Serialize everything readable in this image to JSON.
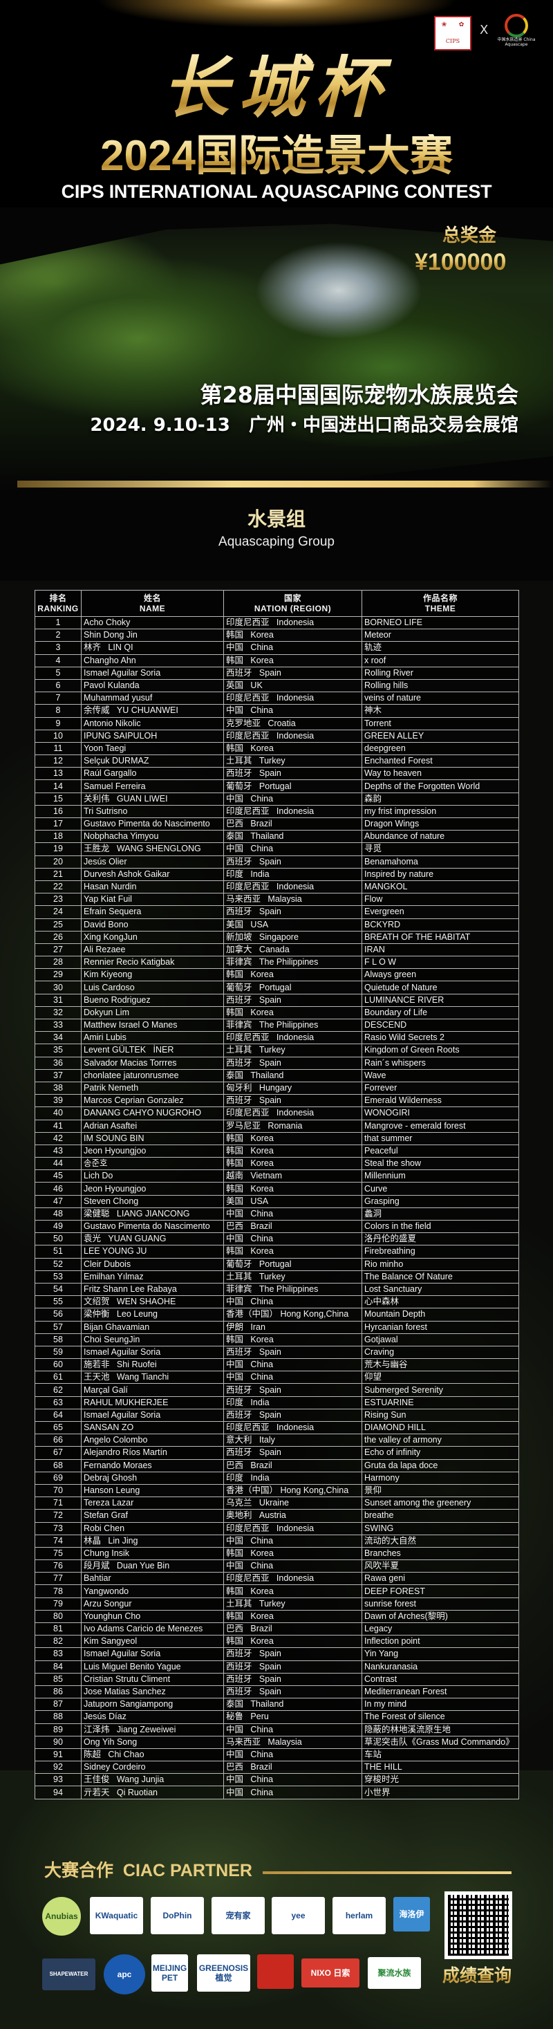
{
  "header": {
    "logo_left": "CIPS",
    "logo_separator": "X",
    "logo_right": "中国水族造景 China Aquascape",
    "calligraphy": "长城杯",
    "title_cn": "2024国际造景大赛",
    "title_en": "CIPS INTERNATIONAL AQUASCAPING CONTEST",
    "prize_label": "总奖金",
    "prize_value": "¥100000",
    "expo": "第28届中国国际宠物水族展览会",
    "date_venue": "2024. 9.10-13   广州・中国进出口商品交易会展馆"
  },
  "group": {
    "title_cn": "水景组",
    "title_en": "Aquascaping Group"
  },
  "table": {
    "headers": [
      {
        "cn": "排名",
        "en": "RANKING"
      },
      {
        "cn": "姓名",
        "en": "NAME"
      },
      {
        "cn": "国家",
        "en": "NATION (REGION)"
      },
      {
        "cn": "作品名称",
        "en": "THEME"
      }
    ],
    "rows": [
      [
        "1",
        "Acho Choky",
        "印度尼西亚   Indonesia",
        "BORNEO LIFE"
      ],
      [
        "2",
        "Shin Dong Jin",
        "韩国   Korea",
        "Meteor"
      ],
      [
        "3",
        "林齐   LIN QI",
        "中国   China",
        "轨迹"
      ],
      [
        "4",
        "Changho Ahn",
        "韩国   Korea",
        "x roof"
      ],
      [
        "5",
        "Ismael Aguilar Soria",
        "西班牙   Spain",
        "Rolling River"
      ],
      [
        "6",
        "Pavol Kulanda",
        "英国   UK",
        "Rolling hills"
      ],
      [
        "7",
        "Muhammad yusuf",
        "印度尼西亚   Indonesia",
        "veins of nature"
      ],
      [
        "8",
        "余传威   YU CHUANWEI",
        "中国   China",
        "神木"
      ],
      [
        "9",
        "Antonio Nikolic",
        "克罗地亚   Croatia",
        "Torrent"
      ],
      [
        "10",
        "IPUNG SAIPULOH",
        "印度尼西亚   Indonesia",
        "GREEN ALLEY"
      ],
      [
        "11",
        "Yoon Taegi",
        "韩国   Korea",
        "deepgreen"
      ],
      [
        "12",
        "Selçuk DURMAZ",
        "土耳其   Turkey",
        "Enchanted Forest"
      ],
      [
        "13",
        "Raúl Gargallo",
        "西班牙   Spain",
        "Way to heaven"
      ],
      [
        "14",
        "Samuel Ferreira",
        "葡萄牙   Portugal",
        "Depths of the Forgotten World"
      ],
      [
        "15",
        "关利伟   GUAN LIWEI",
        "中国   China",
        "森韵"
      ],
      [
        "16",
        "Tri Sutrisno",
        "印度尼西亚   Indonesia",
        "my frist impression"
      ],
      [
        "17",
        "Gustavo Pimenta do Nascimento",
        "巴西   Brazil",
        "Dragon Wings"
      ],
      [
        "18",
        "Nobphacha Yimyou",
        "泰国   Thailand",
        "Abundance of nature"
      ],
      [
        "19",
        "王胜龙   WANG SHENGLONG",
        "中国   China",
        "寻觅"
      ],
      [
        "20",
        "Jesús Olier",
        "西班牙   Spain",
        "Benamahoma"
      ],
      [
        "21",
        "Durvesh Ashok Gaikar",
        "印度   India",
        "Inspired by nature"
      ],
      [
        "22",
        "Hasan Nurdin",
        "印度尼西亚   Indonesia",
        "MANGKOL"
      ],
      [
        "23",
        "Yap Kiat Fuil",
        "马来西亚   Malaysia",
        "Flow"
      ],
      [
        "24",
        "Efrain Sequera",
        "西班牙   Spain",
        "Evergreen"
      ],
      [
        "25",
        "David Bono",
        "美国   USA",
        "BCKYRD"
      ],
      [
        "26",
        "Xing KongJun",
        "新加坡   Singapore",
        "BREATH OF THE HABITAT"
      ],
      [
        "27",
        "Ali Rezaee",
        "加拿大   Canada",
        "IRAN"
      ],
      [
        "28",
        "Rennier Recio Katigbak",
        "菲律宾   The Philippines",
        "F L O W"
      ],
      [
        "29",
        "Kim Kiyeong",
        "韩国   Korea",
        "Always green"
      ],
      [
        "30",
        "Luis Cardoso",
        "葡萄牙   Portugal",
        "Quietude of Nature"
      ],
      [
        "31",
        "Bueno Rodriguez",
        "西班牙   Spain",
        "LUMINANCE RIVER"
      ],
      [
        "32",
        "Dokyun Lim",
        "韩国   Korea",
        "Boundary of Life"
      ],
      [
        "33",
        "Matthew Israel O Manes",
        "菲律宾   The Philippines",
        "DESCEND"
      ],
      [
        "34",
        "Amiri Lubis",
        "印度尼西亚   Indonesia",
        "Rasio Wild Secrets 2"
      ],
      [
        "35",
        "Levent GÜLTEK   İNER",
        "土耳其   Turkey",
        "Kingdom of Green Roots"
      ],
      [
        "36",
        "Salvador Macias Torrres",
        "西班牙   Spain",
        "Rain´s whispers"
      ],
      [
        "37",
        "chonlatee jaturonrusmee",
        "泰国   Thailand",
        "Wave"
      ],
      [
        "38",
        "Patrik Nemeth",
        "匈牙利   Hungary",
        "Forrever"
      ],
      [
        "39",
        "Marcos Ceprian Gonzalez",
        "西班牙   Spain",
        "Emerald Wilderness"
      ],
      [
        "40",
        "DANANG CAHYO NUGROHO",
        "印度尼西亚   Indonesia",
        "WONOGIRI"
      ],
      [
        "41",
        "Adrian Asaftei",
        "罗马尼亚   Romania",
        "Mangrove - emerald forest"
      ],
      [
        "42",
        "IM SOUNG BIN",
        "韩国   Korea",
        "that summer"
      ],
      [
        "43",
        "Jeon Hyoungjoo",
        "韩国   Korea",
        "Peaceful"
      ],
      [
        "44",
        "송준호",
        "韩国   Korea",
        "Steal the show"
      ],
      [
        "45",
        "Lich Do",
        "越南   Vietnam",
        "Millennium"
      ],
      [
        "46",
        "Jeon Hyoungjoo",
        "韩国   Korea",
        "Curve"
      ],
      [
        "47",
        "Steven Chong",
        "美国   USA",
        "Grasping"
      ],
      [
        "48",
        "梁健聪   LIANG JIANCONG",
        "中国   China",
        "蠡洞"
      ],
      [
        "49",
        "Gustavo Pimenta do Nascimento",
        "巴西   Brazil",
        "Colors in the field"
      ],
      [
        "50",
        "袁光   YUAN GUANG",
        "中国   China",
        "洛丹伦的盛夏"
      ],
      [
        "51",
        "LEE YOUNG JU",
        "韩国   Korea",
        "Firebreathing"
      ],
      [
        "52",
        "Cleir Dubois",
        "葡萄牙   Portugal",
        "Rio minho"
      ],
      [
        "53",
        "Emilhan Yılmaz",
        "土耳其   Turkey",
        "The Balance Of Nature"
      ],
      [
        "54",
        "Fritz Shann Lee Rabaya",
        "菲律宾   The Philippines",
        "Lost Sanctuary"
      ],
      [
        "55",
        "文绍贺   WEN SHAOHE",
        "中国   China",
        "心中森林"
      ],
      [
        "56",
        "梁仲衡   Leo Leung",
        "香港（中国） Hong Kong,China",
        "Mountain Depth"
      ],
      [
        "57",
        "Bijan Ghavamian",
        "伊朗   Iran",
        "Hyrcanian forest"
      ],
      [
        "58",
        "Choi SeungJin",
        "韩国   Korea",
        "Gotjawal"
      ],
      [
        "59",
        "Ismael Aguilar Soria",
        "西班牙   Spain",
        "Craving"
      ],
      [
        "60",
        "施若非   Shi Ruofei",
        "中国   China",
        "荒木与幽谷"
      ],
      [
        "61",
        "王天池   Wang Tianchi",
        "中国   China",
        "仰望"
      ],
      [
        "62",
        "Marçal Galí",
        "西班牙   Spain",
        "Submerged Serenity"
      ],
      [
        "63",
        "RAHUL MUKHERJEE",
        "印度   India",
        "ESTUARINE"
      ],
      [
        "64",
        "Ismael Aguilar Soria",
        "西班牙   Spain",
        "Rising Sun"
      ],
      [
        "65",
        "SANSAN ZO",
        "印度尼西亚   Indonesia",
        "DIAMOND HILL"
      ],
      [
        "66",
        "Angelo Colombo",
        "意大利   Italy",
        "the valley of armony"
      ],
      [
        "67",
        "Alejandro Ríos Martín",
        "西班牙   Spain",
        "Echo of infinity"
      ],
      [
        "68",
        "Fernando Moraes",
        "巴西   Brazil",
        "Gruta da lapa doce"
      ],
      [
        "69",
        "Debraj Ghosh",
        "印度   India",
        "Harmony"
      ],
      [
        "70",
        "Hanson Leung",
        "香港（中国） Hong Kong,China",
        "景仰"
      ],
      [
        "71",
        "Tereza Lazar",
        "乌克兰   Ukraine",
        "Sunset among the greenery"
      ],
      [
        "72",
        "Stefan Graf",
        "奥地利   Austria",
        "breathe"
      ],
      [
        "73",
        "Robi Chen",
        "印度尼西亚   Indonesia",
        "SWING"
      ],
      [
        "74",
        "林晶   Lin Jing",
        "中国   China",
        "流动的大自然"
      ],
      [
        "75",
        "Chung Insik",
        "韩国   Korea",
        "Branches"
      ],
      [
        "76",
        "段月斌   Duan Yue Bin",
        "中国   China",
        "风吹半夏"
      ],
      [
        "77",
        "Bahtiar",
        "印度尼西亚   Indonesia",
        "Rawa geni"
      ],
      [
        "78",
        "Yangwondo",
        "韩国   Korea",
        "DEEP FOREST"
      ],
      [
        "79",
        "Arzu Songur",
        "土耳其   Turkey",
        "sunrise forest"
      ],
      [
        "80",
        "Younghun Cho",
        "韩国   Korea",
        "Dawn of Arches(黎明)"
      ],
      [
        "81",
        "Ivo Adams Caricio de Menezes",
        "巴西   Brazil",
        "Legacy"
      ],
      [
        "82",
        "Kim Sangyeol",
        "韩国   Korea",
        "Inflection point"
      ],
      [
        "83",
        "Ismael Aguilar Soria",
        "西班牙   Spain",
        "Yin Yang"
      ],
      [
        "84",
        "Luis Miguel Benito Yague",
        "西班牙   Spain",
        "Nankuranasia"
      ],
      [
        "85",
        "Cristian Strutu Climent",
        "西班牙   Spain",
        "Contrast"
      ],
      [
        "86",
        "Jose Matias Sanchez",
        "西班牙   Spain",
        "Mediterranean Forest"
      ],
      [
        "87",
        "Jatuporn Sangiampong",
        "泰国   Thailand",
        "In my mind"
      ],
      [
        "88",
        "Jesús Díaz",
        "秘鲁   Peru",
        "The Forest of silence"
      ],
      [
        "89",
        "江泽炜   Jiang Zeweiwei",
        "中国   China",
        "隐蔽的林地溪流原生地"
      ],
      [
        "90",
        "Ong Yih Song",
        "马来西亚   Malaysia",
        "草泥突击队《Grass Mud Commando》"
      ],
      [
        "91",
        "陈超   Chi Chao",
        "中国   China",
        "车站"
      ],
      [
        "92",
        "Sidney Cordeiro",
        "巴西   Brazil",
        "THE HILL"
      ],
      [
        "93",
        "王佳俊   Wang Junjia",
        "中国   China",
        "穿梭时光"
      ],
      [
        "94",
        "亓若天   Qi Ruotian",
        "中国   China",
        "小世界"
      ]
    ]
  },
  "footer": {
    "partner_title": "大赛合作  CIAC PARTNER",
    "partners_row1": [
      "Anubias",
      "KWaquatic",
      "DoPhin",
      "宠有家",
      "yee",
      "herlam",
      "海洛伊"
    ],
    "partners_row2": [
      "SHAPEWATER",
      "apc",
      "MEIJING PET",
      "GREENOSIS 植觉",
      "",
      "NIXO 日索",
      "聚流水族"
    ],
    "query_label": "成绩查询"
  },
  "colors": {
    "gold": "#e9cd80",
    "background": "#050505",
    "table_border": "#b8b8b8"
  }
}
